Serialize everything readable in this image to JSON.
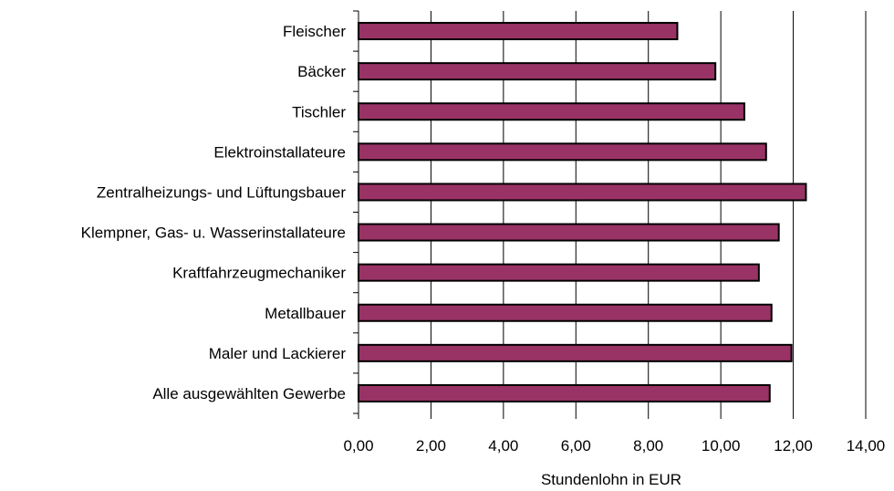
{
  "chart_data": {
    "type": "bar",
    "orientation": "horizontal",
    "categories": [
      "Fleischer",
      "Bäcker",
      "Tischler",
      "Elektroinstallateure",
      "Zentralheizungs- und Lüftungsbauer",
      "Klempner, Gas- u. Wasserinstallateure",
      "Kraftfahrzeugmechaniker",
      "Metallbauer",
      "Maler und Lackierer",
      "Alle ausgewählten Gewerbe"
    ],
    "values": [
      8.8,
      9.85,
      10.65,
      11.25,
      12.35,
      11.6,
      11.05,
      11.4,
      11.95,
      11.35
    ],
    "xlabel": "Stundenlohn in EUR",
    "ylabel": "",
    "xlim": [
      0,
      14
    ],
    "x_ticks": [
      "0,00",
      "2,00",
      "4,00",
      "6,00",
      "8,00",
      "10,00",
      "12,00",
      "14,00"
    ],
    "grid": "vertical",
    "bar_color": "#993366",
    "bar_edge_color": "#000000"
  }
}
